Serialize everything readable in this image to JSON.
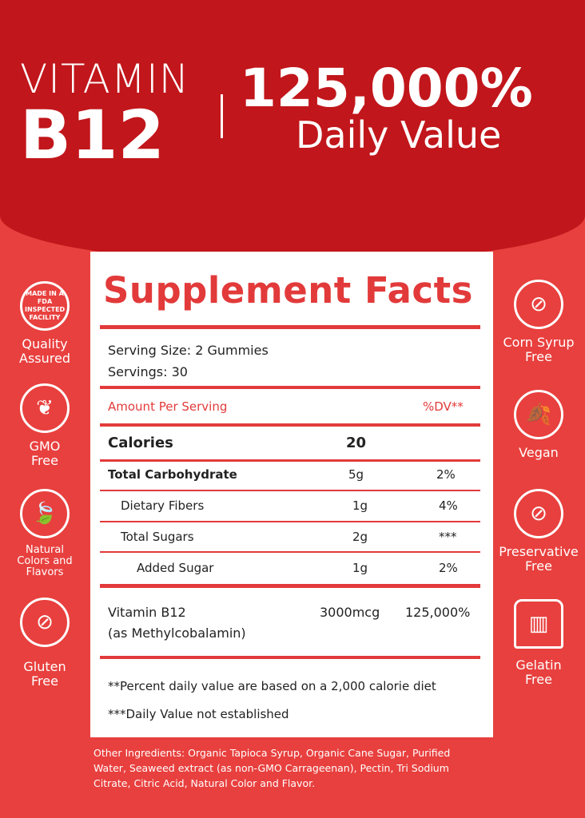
{
  "header": {
    "line1": "VITAMIN",
    "line2": "B12",
    "percent": "125,000%",
    "percent_label": "Daily Value"
  },
  "facts": {
    "title": "Supplement Facts",
    "serving_size_label": "Serving Size:",
    "serving_size": "2 Gummies",
    "servings_label": "Servings:",
    "servings": "30",
    "amount_header": "Amount Per Serving",
    "dv_header": "%DV**",
    "calories_label": "Calories",
    "calories": "20",
    "rows": [
      {
        "name": "Total Carbohydrate",
        "amount": "5g",
        "dv": "2%"
      },
      {
        "name": "Dietary Fibers",
        "amount": "1g",
        "dv": "4%"
      },
      {
        "name": "Total Sugars",
        "amount": "2g",
        "dv": "***"
      },
      {
        "name": "Added Sugar",
        "amount": "1g",
        "dv": "2%"
      }
    ],
    "vitamin": {
      "name": "Vitamin B12",
      "form": "(as Methylcobalamin)",
      "amount": "3000mcg",
      "dv": "125,000%"
    },
    "note1": "**Percent daily value are based on a 2,000 calorie diet",
    "note2": "***Daily Value not established"
  },
  "left_badges": [
    {
      "icon": "fda-icon",
      "badge_text": "MADE IN A FDA INSPECTED FACILITY",
      "label": "Quality Assured"
    },
    {
      "icon": "sprout-icon",
      "label": "GMO Free"
    },
    {
      "icon": "leaf-icon",
      "label": "Natural Colors and Flavors"
    },
    {
      "icon": "no-wheat-icon",
      "label": "Gluten Free"
    }
  ],
  "right_badges": [
    {
      "icon": "no-corn-icon",
      "label": "Corn Syrup Free"
    },
    {
      "icon": "vegan-leaf-icon",
      "label": "Vegan"
    },
    {
      "icon": "no-flask-icon",
      "label": "Preservative Free"
    },
    {
      "icon": "jelly-icon",
      "label": "Gelatin Free"
    }
  ],
  "ingredients": "Other Ingredients: Organic Tapioca Syrup, Organic Cane Sugar, Purified Water, Seaweed extract (as non-GMO Carrageenan), Pectin, Tri Sodium Citrate, Citric Acid, Natural Color and Flavor.",
  "colors": {
    "header_red": "#c1161b",
    "body_red": "#e8403e",
    "accent": "#e23a3a"
  }
}
